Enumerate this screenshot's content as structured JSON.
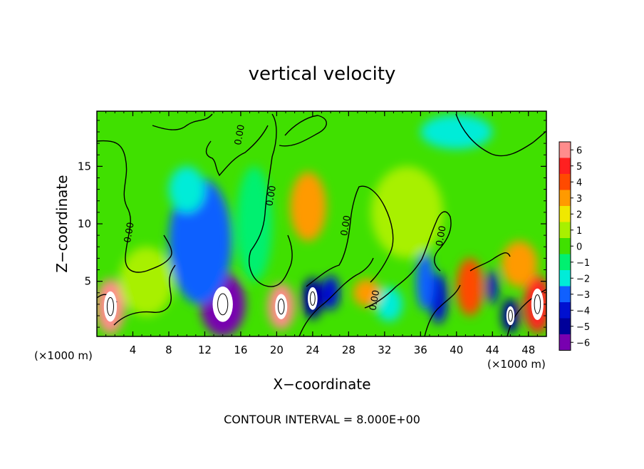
{
  "chart_data": {
    "type": "heatmap",
    "title": "vertical velocity",
    "xlabel": "X−coordinate",
    "ylabel": "Z−coordinate",
    "x_unit_left": "(×1000 m)",
    "x_unit_right": "(×1000 m)",
    "footer": "CONTOUR INTERVAL = 8.000E+00",
    "x_ticks": [
      4,
      8,
      12,
      16,
      20,
      24,
      28,
      32,
      36,
      40,
      44,
      48
    ],
    "y_ticks": [
      5,
      10,
      15
    ],
    "xlim": [
      0,
      50
    ],
    "ylim": [
      0.2,
      19.8
    ],
    "colorbar": {
      "levels": [
        6,
        5,
        4,
        3,
        2,
        1,
        0,
        -1,
        -2,
        -3,
        -4,
        -5,
        -6
      ],
      "labels": [
        "6",
        "5",
        "4",
        "3",
        "2",
        "1",
        "0",
        "−1",
        "−2",
        "−3",
        "−4",
        "−5",
        "−6"
      ],
      "colors": [
        "#ff8c8c",
        "#ff2020",
        "#ff4a00",
        "#ff9a00",
        "#f0e800",
        "#a8f000",
        "#40e000",
        "#00f070",
        "#00ecd8",
        "#1060ff",
        "#0010d0",
        "#00009a",
        "#7800b0"
      ]
    },
    "contour_labels": [
      {
        "text": "0.00",
        "x": 3.9,
        "y": 9.2
      },
      {
        "text": "0.00",
        "x": 16.2,
        "y": 17.7
      },
      {
        "text": "0.00",
        "x": 19.7,
        "y": 12.4
      },
      {
        "text": "0.00",
        "x": 28.0,
        "y": 9.8
      },
      {
        "text": "0.00",
        "x": 31.2,
        "y": 3.3
      },
      {
        "text": "0.00",
        "x": 38.6,
        "y": 8.9
      }
    ],
    "features": [
      {
        "x": 14,
        "y": 3,
        "value": -6,
        "rx": 2.5,
        "ry": 2.8
      },
      {
        "x": 11.5,
        "y": 8.5,
        "value": -3,
        "rx": 3.5,
        "ry": 5.5
      },
      {
        "x": 20.5,
        "y": 2.8,
        "value": 6,
        "rx": 1.5,
        "ry": 2
      },
      {
        "x": 23.5,
        "y": 11.5,
        "value": 3,
        "rx": 2,
        "ry": 3
      },
      {
        "x": 1.5,
        "y": 2.8,
        "value": 6,
        "rx": 1.6,
        "ry": 2.4
      },
      {
        "x": 49,
        "y": 3,
        "value": 5,
        "rx": 1.5,
        "ry": 2.5
      },
      {
        "x": 47,
        "y": 6.5,
        "value": 3,
        "rx": 2,
        "ry": 2
      },
      {
        "x": 41.5,
        "y": 4.5,
        "value": 4,
        "rx": 1.5,
        "ry": 2.5
      },
      {
        "x": 46,
        "y": 2,
        "value": -5,
        "rx": 1,
        "ry": 1.5
      },
      {
        "x": 44,
        "y": 4.5,
        "value": -4,
        "rx": 0.6,
        "ry": 1.5
      },
      {
        "x": 38,
        "y": 3.5,
        "value": -4,
        "rx": 1,
        "ry": 2.2
      },
      {
        "x": 36.5,
        "y": 5,
        "value": -3,
        "rx": 1,
        "ry": 2.5
      },
      {
        "x": 32.5,
        "y": 3,
        "value": -2,
        "rx": 1.5,
        "ry": 1.5
      },
      {
        "x": 30,
        "y": 4,
        "value": 3,
        "rx": 1.5,
        "ry": 1.2
      },
      {
        "x": 24,
        "y": 3.5,
        "value": -5,
        "rx": 1.2,
        "ry": 1.8
      },
      {
        "x": 26,
        "y": 4,
        "value": -4,
        "rx": 1,
        "ry": 1.5
      },
      {
        "x": 17.5,
        "y": 10,
        "value": -1,
        "rx": 2,
        "ry": 5
      },
      {
        "x": 10,
        "y": 13,
        "value": -2,
        "rx": 2,
        "ry": 2
      },
      {
        "x": 40,
        "y": 18,
        "value": -2,
        "rx": 4,
        "ry": 1.5
      },
      {
        "x": 5.5,
        "y": 5,
        "value": 1,
        "rx": 3,
        "ry": 3
      },
      {
        "x": 34.5,
        "y": 11,
        "value": 1,
        "rx": 4,
        "ry": 4
      }
    ]
  }
}
